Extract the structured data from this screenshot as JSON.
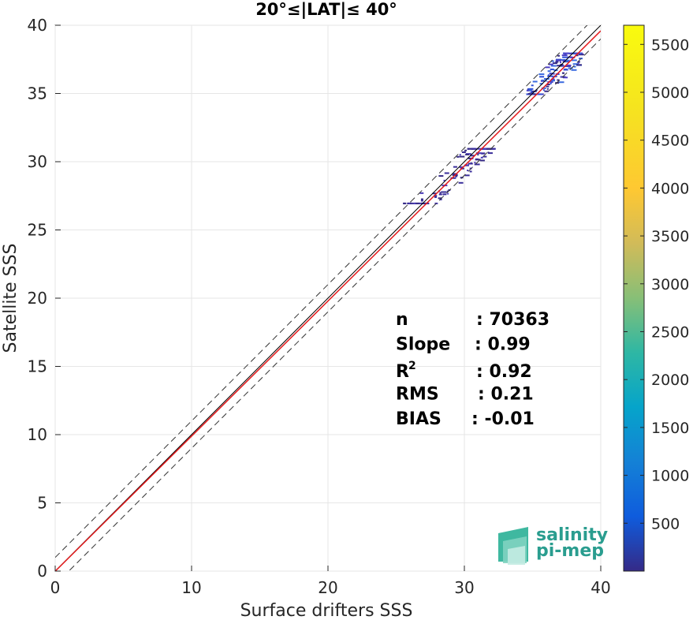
{
  "chart_data": {
    "type": "heatmap",
    "title": "20°≤|LAT|≤ 40°",
    "xlabel": "Surface drifters SSS",
    "ylabel": "Satellite SSS",
    "xlim": [
      0,
      40
    ],
    "ylim": [
      0,
      40
    ],
    "x_ticks": [
      "0",
      "10",
      "20",
      "30",
      "40"
    ],
    "y_ticks": [
      "0",
      "5",
      "10",
      "15",
      "20",
      "25",
      "30",
      "35",
      "40"
    ],
    "grid": true,
    "reference_lines": {
      "identity": "y = x (solid black)",
      "bounds": "y = x ± 1 (dashed black)",
      "fit": "linear regression (red)"
    },
    "fit_line": {
      "slope": 0.99,
      "intercept": -0.01
    },
    "stats": [
      {
        "label": "n",
        "value": ": 70363"
      },
      {
        "label": "Slope",
        "value": ": 0.99"
      },
      {
        "label": "R",
        "sup": "2",
        "value": ": 0.92"
      },
      {
        "label": "RMS",
        "value": ": 0.21"
      },
      {
        "label": "BIAS",
        "value": ": -0.01"
      }
    ],
    "density_clusters": [
      {
        "x_range": [
          25.5,
          32
        ],
        "y_range": [
          27,
          31
        ],
        "intensity": "low"
      },
      {
        "x_range": [
          34.5,
          38.5
        ],
        "y_range": [
          35,
          38
        ],
        "intensity": "medium"
      }
    ],
    "colorbar": {
      "range": [
        0,
        5700
      ],
      "ticks": [
        "500",
        "1000",
        "1500",
        "2000",
        "2500",
        "3000",
        "3500",
        "4000",
        "4500",
        "5000",
        "5500"
      ],
      "colormap": "parula"
    }
  },
  "logo": {
    "line1": "salinity",
    "line2": "pi-mep"
  }
}
